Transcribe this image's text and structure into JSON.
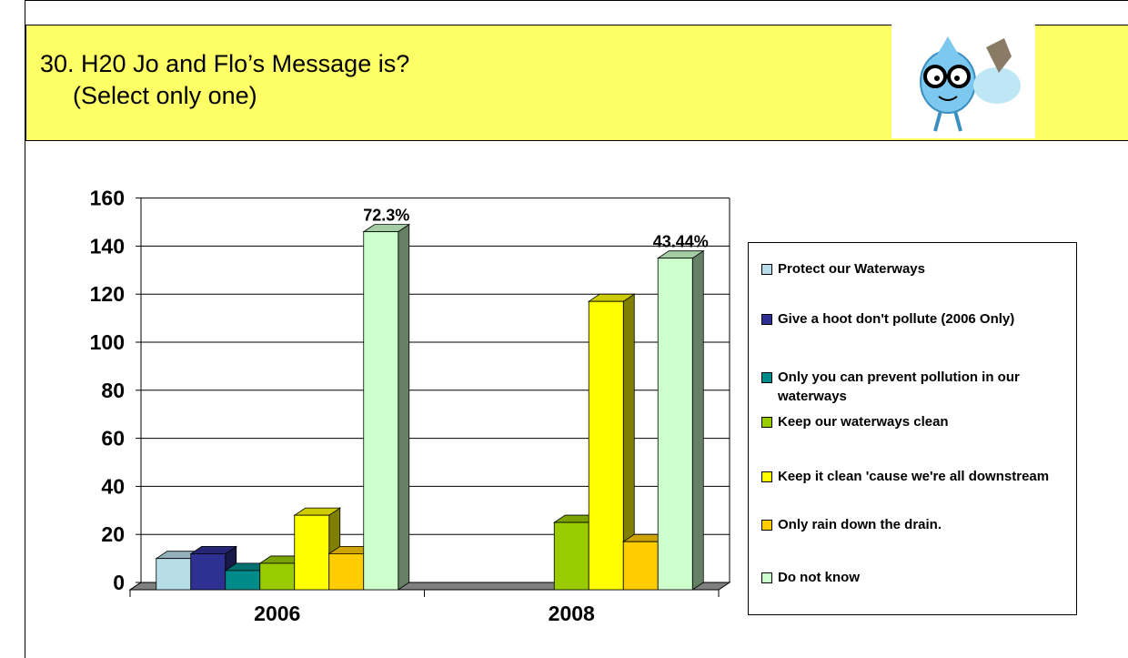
{
  "chart_data": {
    "type": "bar3d",
    "title": "30. H20 Jo and Flo’s Message is?",
    "subtitle": "(Select only one)",
    "categories": [
      "2006",
      "2008"
    ],
    "series": [
      {
        "name": "Protect our Waterways",
        "color": "#b7dde8",
        "values": [
          13,
          null
        ]
      },
      {
        "name": "Give a hoot don't pollute (2006 Only)",
        "color": "#2e3192",
        "values": [
          15,
          null
        ]
      },
      {
        "name": "Only you can prevent pollution in our waterways",
        "color": "#008b8b",
        "values": [
          8,
          null
        ]
      },
      {
        "name": "Keep our waterways clean",
        "color": "#99cc00",
        "values": [
          11,
          28
        ]
      },
      {
        "name": "Keep it clean 'cause we're all downstream",
        "color": "#ffff00",
        "values": [
          31,
          120
        ]
      },
      {
        "name": "Only rain down the drain.",
        "color": "#ffcc00",
        "values": [
          15,
          20
        ]
      },
      {
        "name": "Do not know",
        "color": "#ccffcc",
        "values": [
          149,
          138
        ]
      }
    ],
    "annotations": [
      "72.3%",
      "43.44%"
    ],
    "ylim": [
      0,
      160
    ],
    "yticks": [
      0,
      20,
      40,
      60,
      80,
      100,
      120,
      140,
      160
    ],
    "grid": true,
    "legend": "right"
  }
}
